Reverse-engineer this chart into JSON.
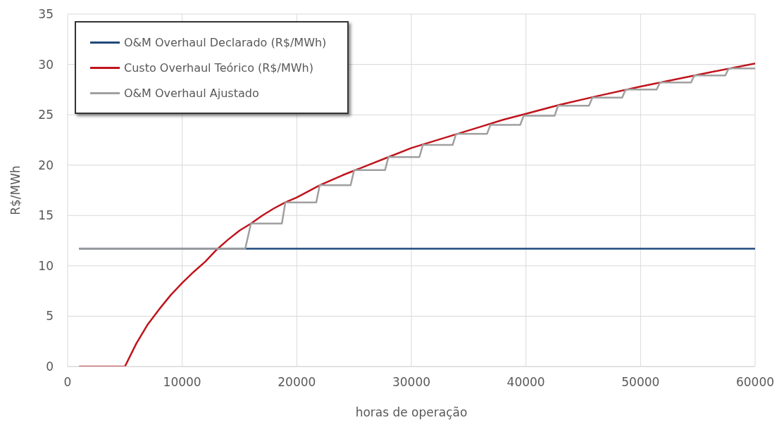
{
  "chart_data": {
    "type": "line",
    "xlabel": "horas de operação",
    "ylabel": "R$/MWh",
    "xlim": [
      0,
      60000
    ],
    "xticks": [
      0,
      10000,
      20000,
      30000,
      40000,
      50000,
      60000
    ],
    "ylim": [
      0,
      35
    ],
    "yticks": [
      0,
      5,
      10,
      15,
      20,
      25,
      30,
      35
    ],
    "grid": true,
    "legend": "top left",
    "marker": "none",
    "line_style": "solid",
    "series": [
      {
        "name": "O&M Overhaul Declarado (R$/MWh)",
        "color": "#1f497d",
        "x": [
          1000,
          60000
        ],
        "values": [
          11.7,
          11.7
        ]
      },
      {
        "name": "Custo Overhaul Teórico (R$/MWh)",
        "color": "#c0141c",
        "x": [
          1000,
          5000,
          6000,
          7000,
          8000,
          9000,
          10000,
          11000,
          12000,
          13000,
          14000,
          15000,
          16000,
          17000,
          18000,
          19000,
          20000,
          22000,
          24000,
          26000,
          28000,
          30000,
          32000,
          34000,
          36000,
          38000,
          40000,
          43000,
          46000,
          50000,
          53000,
          56000,
          60000
        ],
        "values": [
          0,
          0,
          2.3,
          4.2,
          5.7,
          7.1,
          8.3,
          9.4,
          10.4,
          11.6,
          12.6,
          13.5,
          14.2,
          15,
          15.7,
          16.3,
          16.8,
          18,
          19,
          19.9,
          20.8,
          21.7,
          22.4,
          23.1,
          23.8,
          24.5,
          25.1,
          26,
          26.8,
          27.8,
          28.5,
          29.2,
          30.1
        ]
      },
      {
        "name": "O&M Overhaul Ajustado",
        "color": "#a0a0a0",
        "x": [
          1000,
          15500,
          16000,
          18700,
          19000,
          21700,
          22000,
          24700,
          25000,
          27700,
          28000,
          30700,
          31000,
          33600,
          33900,
          36600,
          36900,
          39500,
          39800,
          42500,
          42800,
          45500,
          45800,
          48400,
          48700,
          51400,
          51700,
          54400,
          54700,
          57400,
          57700,
          60000
        ],
        "values": [
          11.7,
          11.7,
          14.2,
          14.2,
          16.3,
          16.3,
          18,
          18,
          19.5,
          19.5,
          20.8,
          20.8,
          22,
          22,
          23.1,
          23.1,
          24,
          24,
          24.9,
          24.9,
          25.9,
          25.9,
          26.7,
          26.7,
          27.5,
          27.5,
          28.2,
          28.2,
          28.9,
          28.9,
          29.6,
          29.6
        ]
      }
    ]
  }
}
